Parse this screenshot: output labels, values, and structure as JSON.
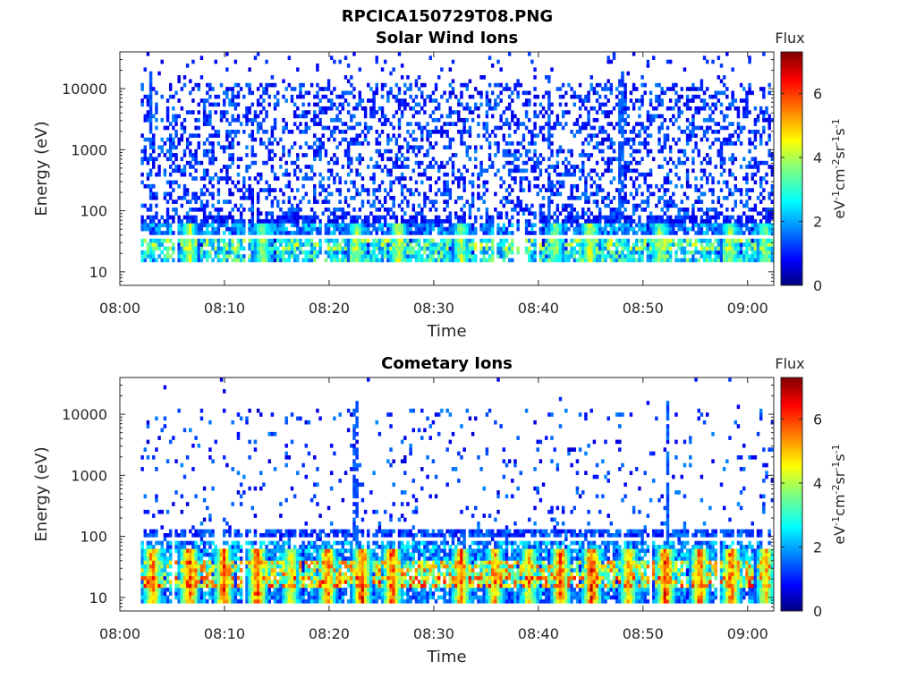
{
  "figure_title": "RPCICA150729T08.PNG",
  "chart_data": [
    {
      "type": "heatmap",
      "title": "Solar Wind Ions",
      "xlabel": "Time",
      "ylabel": "Energy (eV)",
      "x_ticks": [
        "08:00",
        "08:10",
        "08:20",
        "08:30",
        "08:40",
        "08:50",
        "09:00"
      ],
      "x_range_minutes": [
        0,
        62.5
      ],
      "y_scale": "log",
      "y_ticks": [
        "10",
        "100",
        "1000",
        "10000"
      ],
      "y_range": [
        6,
        40000
      ],
      "colorbar": {
        "title": "Flux",
        "unit_base": "eV",
        "unit_parts": [
          [
            "-1",
            "cm"
          ],
          [
            "-2",
            "sr"
          ],
          [
            "-1",
            "s"
          ],
          [
            "-1",
            ""
          ]
        ],
        "ticks": [
          "0",
          "2",
          "4",
          "6"
        ],
        "range": [
          0,
          7.3
        ],
        "colormap": "jet"
      },
      "data_start_minute": 2,
      "background_flux_scale": 1.0,
      "low_energy_bands": [
        [
          14,
          22,
          3.0
        ],
        [
          24,
          36,
          3.5
        ],
        [
          40,
          60,
          2.0
        ],
        [
          60,
          90,
          1.2
        ]
      ],
      "bursts": [
        {
          "minute": 6.5,
          "flux": 4.5
        },
        {
          "minute": 13.5,
          "flux": 4.3
        },
        {
          "minute": 22.5,
          "flux": 4.2
        },
        {
          "minute": 26.5,
          "flux": 4.6
        },
        {
          "minute": 32.5,
          "flux": 4.2
        },
        {
          "minute": 41.5,
          "flux": 4.0
        },
        {
          "minute": 44.8,
          "flux": 4.8
        },
        {
          "minute": 51.5,
          "flux": 4.2
        },
        {
          "minute": 58.2,
          "flux": 4.3
        },
        {
          "minute": 61.5,
          "flux": 4.0
        }
      ],
      "vertical_streaks": [
        2.8,
        40.9,
        47.8
      ]
    },
    {
      "type": "heatmap",
      "title": "Cometary Ions",
      "xlabel": "Time",
      "ylabel": "Energy (eV)",
      "x_ticks": [
        "08:00",
        "08:10",
        "08:20",
        "08:30",
        "08:40",
        "08:50",
        "09:00"
      ],
      "x_range_minutes": [
        0,
        62.5
      ],
      "y_scale": "log",
      "y_ticks": [
        "10",
        "100",
        "1000",
        "10000"
      ],
      "y_range": [
        6,
        40000
      ],
      "colorbar": {
        "title": "Flux",
        "unit_base": "eV",
        "unit_parts": [
          [
            "-1",
            "cm"
          ],
          [
            "-2",
            "sr"
          ],
          [
            "-1",
            "s"
          ],
          [
            "-1",
            ""
          ]
        ],
        "ticks": [
          "0",
          "2",
          "4",
          "6"
        ],
        "range": [
          0,
          7.3
        ],
        "colormap": "jet"
      },
      "data_start_minute": 2,
      "background_flux_scale": 0.18,
      "low_energy_bands": [
        [
          8,
          14,
          2.0
        ],
        [
          14,
          24,
          5.0
        ],
        [
          24,
          40,
          4.5
        ],
        [
          40,
          90,
          2.2
        ],
        [
          100,
          125,
          1.5
        ]
      ],
      "bursts": [
        {
          "minute": 3.0,
          "flux": 6.0
        },
        {
          "minute": 6.5,
          "flux": 6.5
        },
        {
          "minute": 9.8,
          "flux": 6.3
        },
        {
          "minute": 13.0,
          "flux": 6.5
        },
        {
          "minute": 16.2,
          "flux": 5.0
        },
        {
          "minute": 19.7,
          "flux": 6.0
        },
        {
          "minute": 23.0,
          "flux": 6.6
        },
        {
          "minute": 25.9,
          "flux": 6.4
        },
        {
          "minute": 32.5,
          "flux": 6.0
        },
        {
          "minute": 35.7,
          "flux": 5.5
        },
        {
          "minute": 39.0,
          "flux": 5.0
        },
        {
          "minute": 42.0,
          "flux": 6.3
        },
        {
          "minute": 45.0,
          "flux": 6.7
        },
        {
          "minute": 48.5,
          "flux": 5.5
        },
        {
          "minute": 52.0,
          "flux": 6.5
        },
        {
          "minute": 55.3,
          "flux": 6.2
        },
        {
          "minute": 58.3,
          "flux": 6.2
        },
        {
          "minute": 61.6,
          "flux": 5.5
        }
      ],
      "vertical_streaks": [
        22.4,
        52.2
      ]
    }
  ]
}
